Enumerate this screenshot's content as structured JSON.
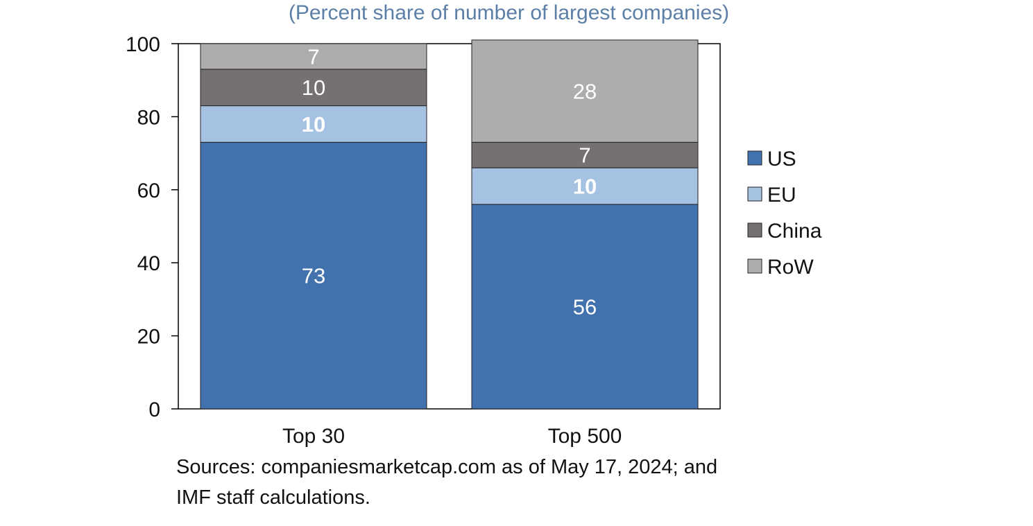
{
  "subtitle": "(Percent share of number of largest companies)",
  "source": {
    "line1": "Sources: companiesmarketcap.com as of May 17, 2024; and",
    "line2": "IMF staff calculations."
  },
  "chart_data": {
    "type": "bar",
    "stacked": true,
    "categories": [
      "Top 30",
      "Top 500"
    ],
    "series": [
      {
        "name": "US",
        "values": [
          73,
          56
        ],
        "color": "#4272ae",
        "label_bold": false
      },
      {
        "name": "EU",
        "values": [
          10,
          10
        ],
        "color": "#a6c2e3",
        "label_bold": true
      },
      {
        "name": "China",
        "values": [
          10,
          7
        ],
        "color": "#767171",
        "label_bold": false
      },
      {
        "name": "RoW",
        "values": [
          7,
          28
        ],
        "color": "#aeadac",
        "label_bold": false
      }
    ],
    "data_labels": [
      [
        "73",
        "56"
      ],
      [
        "10",
        "10"
      ],
      [
        "10",
        "7"
      ],
      [
        "7",
        "28"
      ]
    ],
    "y_ticks": [
      "0",
      "20",
      "40",
      "60",
      "80",
      "100"
    ],
    "ylim": [
      0,
      100
    ],
    "grid": false,
    "legend_position": "right"
  }
}
